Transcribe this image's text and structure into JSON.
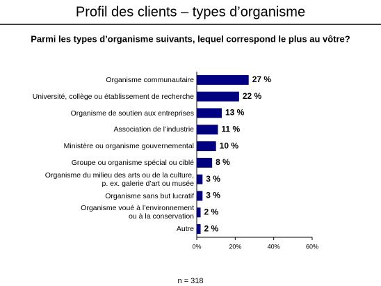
{
  "chart_data": {
    "type": "bar",
    "orientation": "horizontal",
    "title": "Profil des clients – types d’organisme",
    "subtitle": "Parmi les types d’organisme suivants, lequel correspond le plus au vôtre?",
    "categories": [
      "Organisme communautaire",
      "Université, collège ou établissement de recherche",
      "Organisme de soutien aux entreprises",
      "Association de l’industrie",
      "Ministère ou organisme gouvernemental",
      "Groupe ou organisme spécial ou ciblé",
      "Organisme du milieu des arts ou de la culture,\np. ex. galerie d’art ou musée",
      "Organisme sans but lucratif",
      "Organisme voué à l’environnement\nou à la conservation",
      "Autre"
    ],
    "values": [
      27,
      22,
      13,
      11,
      10,
      8,
      3,
      3,
      2,
      2
    ],
    "value_labels": [
      "27 %",
      "22 %",
      "13 %",
      "11 %",
      "10 %",
      "8 %",
      "3 %",
      "3 %",
      "2 %",
      "2 %"
    ],
    "color": "#000080",
    "xlim": [
      0,
      60
    ],
    "xticks": [
      {
        "value": 0,
        "label": "0%"
      },
      {
        "value": 20,
        "label": "20%"
      },
      {
        "value": 40,
        "label": "40%"
      },
      {
        "value": 60,
        "label": "60%"
      }
    ],
    "note": "n = 318"
  }
}
